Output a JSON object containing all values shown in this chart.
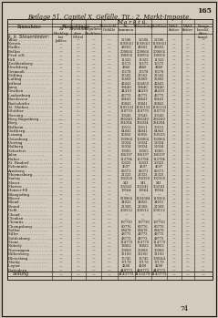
{
  "page_number": "165",
  "title": "Beilage 51. Capitel X. Gefälle. Tit.: 2. Markt-Imposte.",
  "col_header_left": "Einnahme",
  "markt_header": "M a r k t ü.",
  "rueck_header": "Rückstände",
  "sub_cols": [
    "Zu\nRücklag bei\nJahres",
    "Zuwendet\naber\nMittel",
    "Regulirte\nNachlass."
  ],
  "right_cols": [
    "Thatsächl.\nGefälle",
    "Zu-\nkommen",
    "Tilbeutung",
    "Kraftlast",
    "Wohl-\nthäter",
    "Einige\nbeschl.\nüber-\nhaupt"
  ],
  "section_header": "k. k. Steuerämter:",
  "rows": [
    [
      "Villac",
      "—",
      "—",
      "—",
      "—",
      "52596",
      "52596",
      "52596",
      "—",
      "—",
      "—"
    ],
    [
      "Kerzin.",
      "—",
      "—",
      "—",
      "—",
      "1193641",
      "1193641",
      "1193641",
      "—",
      "—",
      "—"
    ],
    [
      "Radke",
      "—",
      "—",
      "—",
      "—",
      "48562",
      "48562",
      "48562",
      "—",
      "—",
      "—"
    ],
    [
      "Belliss",
      "—",
      "—",
      "—",
      "—",
      "209664",
      "209664",
      "209664",
      "—",
      "—",
      "—"
    ],
    [
      "Pred a/H.",
      "—",
      "—",
      "—",
      "—",
      "100956",
      "100956",
      "100956",
      "—",
      "—",
      "—"
    ],
    [
      "Dill",
      "—",
      "—",
      "—",
      "—",
      "11323",
      "11323",
      "11323",
      "—",
      "—",
      "—"
    ],
    [
      "Zwikhenberg",
      "—",
      "—",
      "—",
      "—",
      "12573",
      "12573",
      "12573",
      "—",
      "—",
      "—"
    ],
    [
      "Dradsberg",
      "—",
      "—",
      "—",
      "—",
      "4840",
      "4840",
      "4840",
      "—",
      "—",
      "—"
    ],
    [
      "Grimault",
      "—",
      "—",
      "—",
      "—",
      "13578",
      "13578",
      "13578",
      "—",
      "—",
      "—"
    ],
    [
      "Stilling",
      "—",
      "—",
      "—",
      "—",
      "32562",
      "32562",
      "32562",
      "—",
      "—",
      "—"
    ],
    [
      "Lulling",
      "—",
      "—",
      "—",
      "—",
      "35869",
      "35869",
      "35869",
      "—",
      "—",
      "—"
    ],
    [
      "Jedlinal",
      "—",
      "—",
      "—",
      "—",
      "42441",
      "514456",
      "42441",
      "—",
      "—",
      "—"
    ],
    [
      "Januy",
      "—",
      "—",
      "—",
      "—",
      "59440",
      "59440",
      "59440",
      "—",
      "—",
      "—"
    ],
    [
      "Graiben",
      "—",
      "—",
      "—",
      "—",
      "44410",
      "44410",
      "44410",
      "—",
      "—",
      "—"
    ],
    [
      "Laukenburg",
      "—",
      "—",
      "—",
      "—",
      "43773",
      "43773",
      "43773",
      "—",
      "—",
      "—"
    ],
    [
      "Burdessen",
      "—",
      "—",
      "—",
      "—",
      "89441",
      "89441",
      "89441",
      "—",
      "—",
      "—"
    ],
    [
      "Bartsdorfer",
      "—",
      "—",
      "—",
      "—",
      "80841",
      "80841",
      "80841",
      "—",
      "—",
      "—"
    ],
    [
      "St. Maiken",
      "—",
      "—",
      "—",
      "—",
      "1105153",
      "1105153",
      "1105153",
      "—",
      "—",
      "—"
    ],
    [
      "Glottber",
      "—",
      "—",
      "—",
      "—",
      "118770",
      "118770",
      "118770",
      "—",
      "—",
      "—"
    ],
    [
      "Rosenig",
      "—",
      "—",
      "—",
      "—",
      "30543",
      "30543",
      "30543",
      "—",
      "—",
      "—"
    ],
    [
      "Berg Bogenburg",
      "—",
      "—",
      "—",
      "—",
      "286240",
      "286240",
      "286240",
      "—",
      "—",
      "—"
    ],
    [
      "Berg",
      "—",
      "—",
      "—",
      "—",
      "284394",
      "284394",
      "284394",
      "—",
      "—",
      "—"
    ],
    [
      "Belheim",
      "—",
      "—",
      "—",
      "—",
      "30511",
      "30511",
      "30511",
      "—",
      "—",
      "—"
    ],
    [
      "Guttberg",
      "—",
      "—",
      "—",
      "—",
      "64041",
      "64041",
      "64041",
      "—",
      "—",
      "—"
    ],
    [
      "Leining",
      "—",
      "—",
      "—",
      "—",
      "86856",
      "86856",
      "158126",
      "—",
      "—",
      "—"
    ],
    [
      "Ostenburg",
      "—",
      "—",
      "—",
      "—",
      "103964",
      "103964",
      "103964",
      "—",
      "—",
      "—"
    ],
    [
      "Derting",
      "—",
      "—",
      "—",
      "—",
      "52034",
      "52034",
      "52034",
      "—",
      "—",
      "—"
    ],
    [
      "Balburg",
      "—",
      "—",
      "—",
      "—",
      "52034",
      "52034",
      "52034",
      "—",
      "—",
      "—"
    ],
    [
      "Scherfert",
      "—",
      "—",
      "—",
      "—",
      "10365",
      "10365",
      "10365",
      "—",
      "—",
      "—"
    ],
    [
      "Julan",
      "—",
      "—",
      "—",
      "—",
      "194197",
      "194197",
      "194197",
      "—",
      "—",
      "—"
    ],
    [
      "Ruber",
      "—",
      "—",
      "—",
      "—",
      "112794",
      "112794",
      "112794",
      "—",
      "—",
      "—"
    ],
    [
      "St. Rindorf",
      "—",
      "—",
      "—",
      "—",
      "50323",
      "50323",
      "50323",
      "—",
      "—",
      "—"
    ],
    [
      "Schemnitz",
      "—",
      "—",
      "—",
      "—",
      "4597",
      "4597",
      "4597",
      "—",
      "—",
      "—"
    ],
    [
      "Arnsberg",
      "—",
      "—",
      "—",
      "—",
      "89371",
      "89371",
      "89371",
      "—",
      "—",
      "—"
    ],
    [
      "Murmesburg",
      "—",
      "—",
      "—",
      "—",
      "21323",
      "21323",
      "21323",
      "—",
      "—",
      "—"
    ],
    [
      "Sartuy",
      "—",
      "—",
      "—",
      "—",
      "102358",
      "102358",
      "102358",
      "—",
      "—",
      "—"
    ],
    [
      "Slaser",
      "—",
      "—",
      "—",
      "—",
      "541",
      "541",
      "541",
      "—",
      "—",
      "—"
    ],
    [
      "Marteu",
      "—",
      "—",
      "—",
      "—",
      "302541",
      "302541",
      "302541",
      "—",
      "—",
      "—"
    ],
    [
      "Hanser-Ell",
      "—",
      "—",
      "—",
      "—",
      "19564",
      "19564",
      "19564",
      "—",
      "—",
      "—"
    ],
    [
      "Blaugoding",
      "—",
      "—",
      "—",
      "—",
      "—",
      "—",
      "—",
      "—",
      "—",
      "—"
    ],
    [
      "Blaser",
      "—",
      "—",
      "—",
      "—",
      "619864",
      "1162084",
      "119364",
      "—",
      "—",
      "—"
    ],
    [
      "Bland",
      "—",
      "—",
      "—",
      "—",
      "34025",
      "34025",
      "34031",
      "—",
      "—",
      "—"
    ],
    [
      "Brand",
      "—",
      "—",
      "—",
      "—",
      "21368",
      "21368",
      "21368",
      "—",
      "—",
      "—"
    ],
    [
      "Dollt",
      "—",
      "—",
      "—",
      "—",
      "200512",
      "200512",
      "200512",
      "—",
      "—",
      "—"
    ],
    [
      "Chead",
      "—",
      "—",
      "—",
      "—",
      "—",
      "—",
      "—",
      "—",
      "—",
      "—"
    ],
    [
      "Clenken",
      "—",
      "—",
      "—",
      "—",
      "—",
      "—",
      "—",
      "—",
      "—",
      "—"
    ],
    [
      "Chemitz",
      "—",
      "—",
      "—",
      "—",
      "197730",
      "197730",
      "197730",
      "—",
      "—",
      "—"
    ],
    [
      "Chempsburg",
      "—",
      "—",
      "—",
      "—",
      "60776",
      "60776",
      "60776",
      "—",
      "—",
      "—"
    ],
    [
      "Sollen",
      "—",
      "—",
      "—",
      "—",
      "68478",
      "68478",
      "68478",
      "—",
      "—",
      "—"
    ],
    [
      "Siller",
      "—",
      "—",
      "—",
      "—",
      "48773",
      "48773",
      "48773",
      "—",
      "—",
      "—"
    ],
    [
      "Suldenburg",
      "—",
      "—",
      "—",
      "—",
      "48773",
      "48773",
      "48773",
      "—",
      "—",
      "—"
    ],
    [
      "Stanz",
      "—",
      "—",
      "—",
      "—",
      "114779",
      "114779",
      "114779",
      "—",
      "—",
      "—"
    ],
    [
      "Riderly",
      "—",
      "—",
      "—",
      "—",
      "18062",
      "18062",
      "18062",
      "—",
      "—",
      "—"
    ],
    [
      "Norrumpen",
      "—",
      "—",
      "—",
      "—",
      "30068",
      "30068",
      "30068",
      "—",
      "—",
      "—"
    ],
    [
      "Billersberg",
      "—",
      "—",
      "—",
      "—",
      "32160",
      "32160",
      "32160",
      "—",
      "—",
      "—"
    ],
    [
      "Bleterking",
      "—",
      "—",
      "—",
      "—",
      "15745",
      "15745",
      "100344",
      "—",
      "—",
      "—"
    ],
    [
      "Marky",
      "—",
      "—",
      "—",
      "—",
      "17179",
      "17179",
      "17179",
      "—",
      "—",
      "—"
    ],
    [
      "Lepier",
      "—",
      "—",
      "—",
      "—",
      "4208",
      "4208",
      "4208",
      "—",
      "—",
      "—"
    ],
    [
      "Rattsderg",
      "—",
      "—",
      "—",
      "—",
      "440773",
      "440773",
      "440773",
      "—",
      "—",
      "—"
    ]
  ],
  "footer_label": "Stitung",
  "footer_data": [
    "—",
    "—",
    "—",
    "—",
    "4143773",
    "4152279",
    "2143773",
    "—",
    "—",
    "—"
  ],
  "bg_color": "#c8bfb0",
  "paper_color": "#d4cbbf",
  "text_color": "#1a1208",
  "line_color": "#2a2010",
  "page_bottom_num": "74"
}
